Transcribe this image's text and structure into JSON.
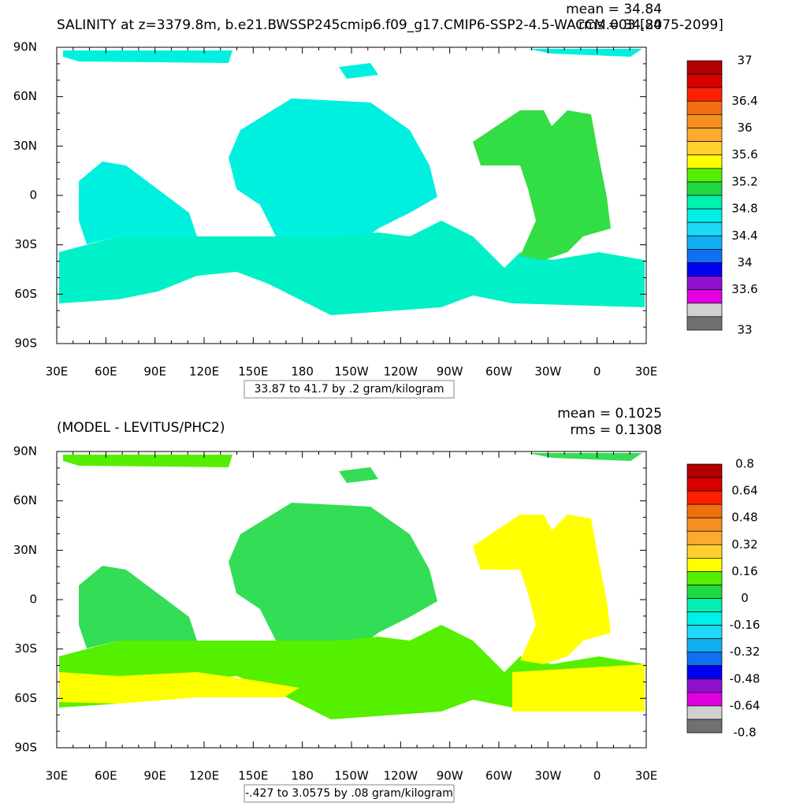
{
  "panels": [
    {
      "title": "SALINITY at z=3379.8m, b.e21.BWSSP245cmip6.f09_g17.CMIP6-SSP2-4.5-WACCM.003 [2075-2099]",
      "mean": "mean = 34.84",
      "rms": "rms = 34.84",
      "info": "33.87 to 41.7 by .2 gram/kilogram",
      "colorbar_labels": [
        37,
        36.4,
        36,
        35.6,
        35.2,
        34.8,
        34.4,
        34,
        33.6,
        33
      ]
    },
    {
      "title": "(MODEL - LEVITUS/PHC2)",
      "mean": "mean = 0.1025",
      "rms": "rms = 0.1308",
      "info": "-.427 to 3.0575 by .08 gram/kilogram",
      "colorbar_labels": [
        0.8,
        0.64,
        0.48,
        0.32,
        0.16,
        0,
        -0.16,
        -0.32,
        -0.48,
        -0.64,
        -0.8
      ]
    }
  ],
  "lon_labels": [
    "30E",
    "60E",
    "90E",
    "120E",
    "150E",
    "180",
    "150W",
    "120W",
    "90W",
    "60W",
    "30W",
    "0",
    "30E"
  ],
  "lat_labels": [
    "90N",
    "60N",
    "30N",
    "0",
    "30S",
    "60S",
    "90S"
  ],
  "colorbar_colors": [
    "#b00000",
    "#d80000",
    "#ff2000",
    "#f07010",
    "#f59020",
    "#fcaa30",
    "#ffd030",
    "#ffff00",
    "#55ee00",
    "#20d840",
    "#00f0b0",
    "#00f0e8",
    "#20d8f8",
    "#10b0f0",
    "#1070f0",
    "#0000f0",
    "#9010d0",
    "#e000e0",
    "#d0d0d0",
    "#707070"
  ]
}
